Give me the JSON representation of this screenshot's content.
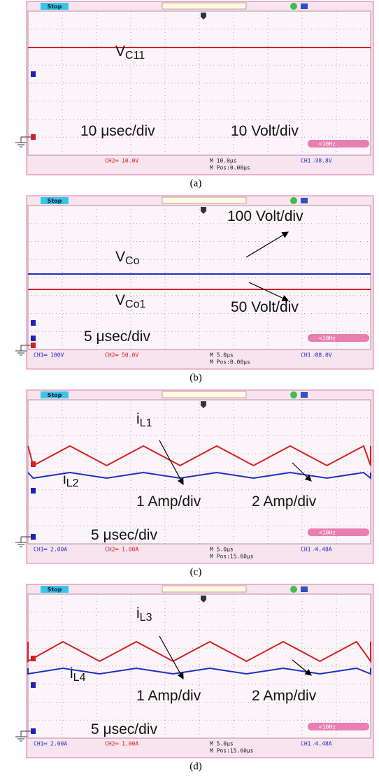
{
  "panels": [
    {
      "status": "Stop",
      "trigger": "<10Hz",
      "caption": "(a)",
      "footer": [
        "CH2═ 10.0V",
        "M 10.0μs",
        "M Pos:0.00μs",
        "CH1 ⁄38.8V"
      ],
      "annotations": [
        {
          "text": "V",
          "sub": "C11"
        },
        {
          "text": "10 μsec/div"
        },
        {
          "text": "10 Volt/div"
        }
      ]
    },
    {
      "status": "Stop",
      "trigger": "<10Hz",
      "caption": "(b)",
      "footer": [
        "CH1═ 100V",
        "CH2═ 50.0V",
        "M 5.0μs",
        "M Pos:0.00μs",
        "CH1 ⁄88.0V"
      ],
      "annotations": [
        {
          "text": "100 Volt/div"
        },
        {
          "text": "V",
          "sub": "Co"
        },
        {
          "text": "V",
          "sub": "Co1"
        },
        {
          "text": "50 Volt/div"
        },
        {
          "text": "5 μsec/div"
        }
      ]
    },
    {
      "status": "Stop",
      "trigger": "<10Hz",
      "caption": "(c)",
      "footer": [
        "CH1═ 2.00A",
        "CH2═ 1.00A",
        "M 5.0μs",
        "M Pos:15.60μs",
        "CH1 ⁄4.48A"
      ],
      "annotations": [
        {
          "text": "i",
          "sub": "L1"
        },
        {
          "text": "i",
          "sub": "L2"
        },
        {
          "text": "1 Amp/div"
        },
        {
          "text": "2 Amp/div"
        },
        {
          "text": "5 μsec/div"
        }
      ]
    },
    {
      "status": "Stop",
      "trigger": "<10Hz",
      "caption": "(d)",
      "footer": [
        "CH1═ 2.00A",
        "CH2═ 1.00A",
        "M 5.0μs",
        "M Pos:15.60μs",
        "CH1 ⁄4.48A"
      ],
      "annotations": [
        {
          "text": "i",
          "sub": "L3"
        },
        {
          "text": "i",
          "sub": "L4"
        },
        {
          "text": "1 Amp/div"
        },
        {
          "text": "2 Amp/div"
        },
        {
          "text": "5 μsec/div"
        }
      ]
    }
  ]
}
